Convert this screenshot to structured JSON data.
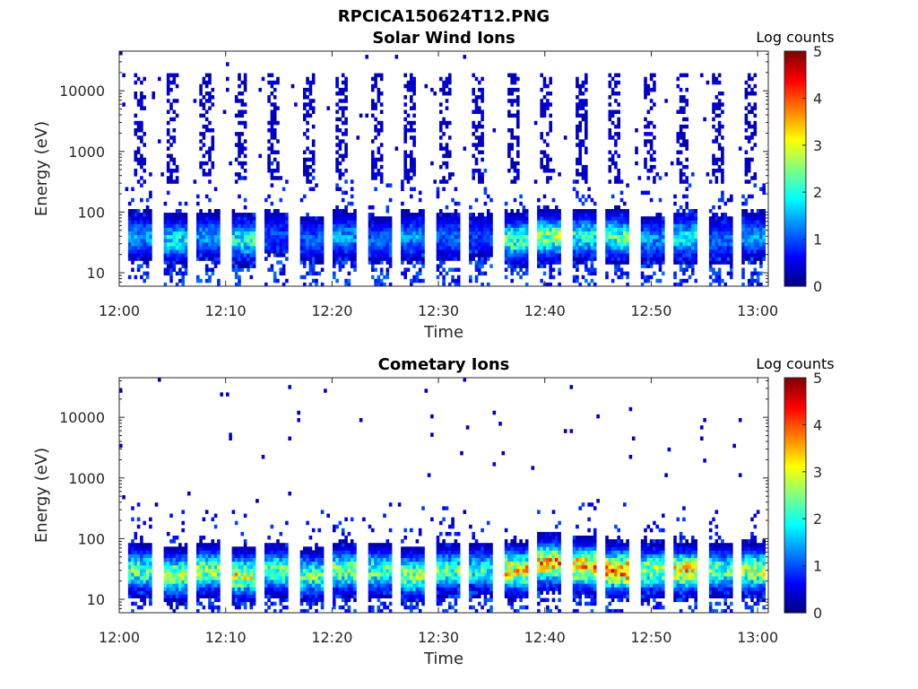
{
  "figure_title": "RPCICA150624T12.PNG",
  "chart_data": [
    {
      "type": "heatmap",
      "title": "Solar Wind Ions",
      "xlabel": "Time",
      "ylabel": "Energy (eV)",
      "x_ticks": [
        "12:00",
        "12:10",
        "12:20",
        "12:30",
        "12:40",
        "12:50",
        "13:00"
      ],
      "x_range_minutes": [
        0,
        61
      ],
      "y_ticks": [
        "10",
        "100",
        "1000",
        "10000"
      ],
      "y_scale": "log",
      "y_range": [
        6,
        45000
      ],
      "colorbar": {
        "label": "Log counts",
        "ticks": [
          "0",
          "1",
          "2",
          "3",
          "4",
          "5"
        ],
        "range": [
          0,
          5
        ],
        "colormap": "jet"
      },
      "scan_period_minutes": 3.2,
      "energy_peaks_eV": [
        40,
        35,
        40,
        35,
        45,
        35,
        40,
        35,
        40,
        40,
        40,
        35,
        40,
        40,
        40,
        35,
        40,
        35,
        40
      ],
      "peak_log_counts": [
        1.5,
        2.0,
        1.5,
        2.2,
        1.0,
        1.2,
        1.5,
        1.2,
        1.5,
        1.2,
        1.0,
        2.5,
        2.8,
        2.2,
        2.5,
        1.5,
        2.0,
        1.2,
        1.5
      ],
      "high_energy_background": true
    },
    {
      "type": "heatmap",
      "title": "Cometary Ions",
      "xlabel": "Time",
      "ylabel": "Energy (eV)",
      "x_ticks": [
        "12:00",
        "12:10",
        "12:20",
        "12:30",
        "12:40",
        "12:50",
        "13:00"
      ],
      "x_range_minutes": [
        0,
        61
      ],
      "y_ticks": [
        "10",
        "100",
        "1000",
        "10000"
      ],
      "y_scale": "log",
      "y_range": [
        6,
        45000
      ],
      "colorbar": {
        "label": "Log counts",
        "ticks": [
          "0",
          "1",
          "2",
          "3",
          "4",
          "5"
        ],
        "range": [
          0,
          5
        ],
        "colormap": "jet"
      },
      "scan_period_minutes": 3.2,
      "energy_peaks_eV": [
        30,
        25,
        30,
        25,
        30,
        25,
        30,
        30,
        25,
        30,
        30,
        30,
        40,
        35,
        30,
        30,
        30,
        30,
        30
      ],
      "peak_log_counts": [
        2.5,
        3.0,
        2.8,
        3.2,
        2.5,
        2.5,
        2.8,
        2.5,
        2.8,
        2.5,
        2.2,
        3.5,
        3.8,
        3.8,
        4.0,
        3.0,
        3.5,
        2.5,
        3.0
      ],
      "high_energy_background": false
    }
  ]
}
